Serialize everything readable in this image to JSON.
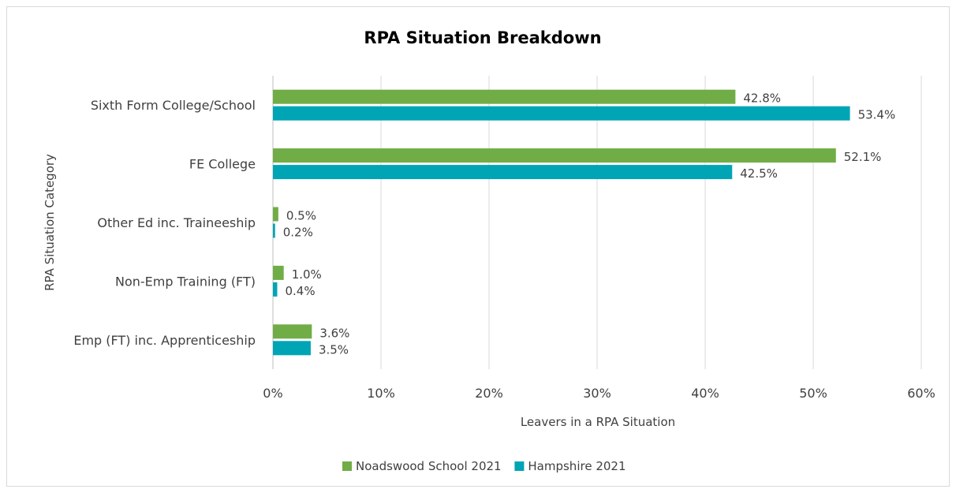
{
  "chart_data": {
    "type": "bar",
    "orientation": "horizontal",
    "title": "RPA Situation Breakdown",
    "xlabel": "Leavers in a RPA Situation",
    "ylabel": "RPA Situation Category",
    "categories": [
      "Sixth Form College/School",
      "FE College",
      "Other Ed inc. Traineeship",
      "Non-Emp Training (FT)",
      "Emp (FT) inc. Apprenticeship"
    ],
    "series": [
      {
        "name": "Noadswood School 2021",
        "color": "#70ad47",
        "values": [
          42.8,
          52.1,
          0.5,
          1.0,
          3.6
        ],
        "labels": [
          "42.8%",
          "52.1%",
          "0.5%",
          "1.0%",
          "3.6%"
        ]
      },
      {
        "name": "Hampshire 2021",
        "color": "#00a5b5",
        "values": [
          53.4,
          42.5,
          0.2,
          0.4,
          3.5
        ],
        "labels": [
          "53.4%",
          "42.5%",
          "0.2%",
          "0.4%",
          "3.5%"
        ]
      }
    ],
    "xlim": [
      0,
      60
    ],
    "xticks": [
      "0%",
      "10%",
      "20%",
      "30%",
      "40%",
      "50%",
      "60%"
    ],
    "grid": true,
    "gridline_color": "#d9d9d9",
    "legend_position": "bottom"
  }
}
